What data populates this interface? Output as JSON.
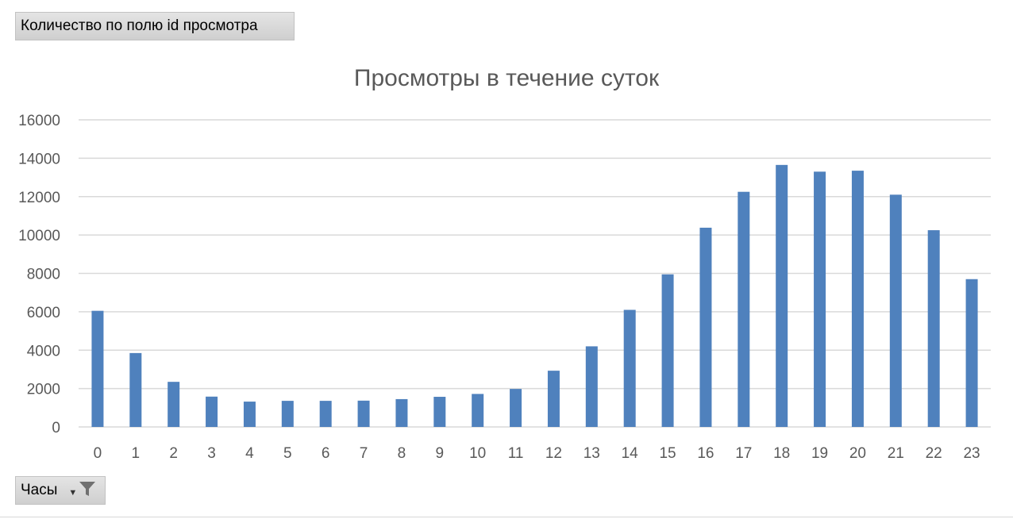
{
  "value_field_button": {
    "label": "Количество по полю id просмотра"
  },
  "axis_field_button": {
    "label": "Часы",
    "dropdown_icon": "chevron-down-icon",
    "filter_icon": "funnel-filter-icon"
  },
  "colors": {
    "bar": "#4f81bd",
    "grid": "#d9d9d9",
    "axis_text": "#595959",
    "title": "#595959"
  },
  "chart_data": {
    "type": "bar",
    "title": "Просмотры в течение суток",
    "xlabel": "",
    "ylabel": "",
    "ylim": [
      0,
      16000
    ],
    "yticks": [
      0,
      2000,
      4000,
      6000,
      8000,
      10000,
      12000,
      14000,
      16000
    ],
    "grid": true,
    "legend": "none",
    "categories": [
      "0",
      "1",
      "2",
      "3",
      "4",
      "5",
      "6",
      "7",
      "8",
      "9",
      "10",
      "11",
      "12",
      "13",
      "14",
      "15",
      "16",
      "17",
      "18",
      "19",
      "20",
      "21",
      "22",
      "23"
    ],
    "values": [
      6050,
      3850,
      2350,
      1580,
      1320,
      1360,
      1360,
      1370,
      1450,
      1570,
      1720,
      1980,
      2930,
      4200,
      6100,
      7950,
      10380,
      12250,
      13650,
      13300,
      13350,
      12100,
      10250,
      7700
    ]
  }
}
